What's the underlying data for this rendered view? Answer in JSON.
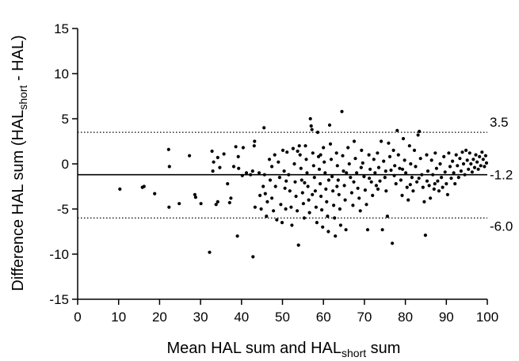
{
  "chart_data": {
    "type": "scatter",
    "title": "",
    "xlabel": {
      "pre": "Mean HAL sum and HAL",
      "sub": "short",
      "post": " sum"
    },
    "ylabel": {
      "pre": "Difference HAL sum (HAL",
      "sub": "short",
      "post": " - HAL)"
    },
    "xlim": [
      0,
      100
    ],
    "ylim": [
      -15,
      15
    ],
    "xticks": [
      0,
      10,
      20,
      30,
      40,
      50,
      60,
      70,
      80,
      90,
      100
    ],
    "yticks": [
      -15,
      -10,
      -5,
      0,
      5,
      10,
      15
    ],
    "grid": false,
    "reference_lines": [
      {
        "value": 3.5,
        "label": "3.5",
        "style": "dotted"
      },
      {
        "value": -1.2,
        "label": "-1.2",
        "style": "solid"
      },
      {
        "value": -6.0,
        "label": "-6.0",
        "style": "dotted"
      }
    ],
    "points": [
      [
        10.3,
        -2.8
      ],
      [
        15.8,
        -2.6
      ],
      [
        16.2,
        -2.5
      ],
      [
        18.8,
        -3.3
      ],
      [
        22.2,
        1.6
      ],
      [
        22.4,
        -0.3
      ],
      [
        22.3,
        -4.8
      ],
      [
        24.8,
        -4.4
      ],
      [
        27.3,
        0.9
      ],
      [
        28.6,
        -3.4
      ],
      [
        28.8,
        -3.7
      ],
      [
        30.1,
        -4.4
      ],
      [
        32.2,
        -9.8
      ],
      [
        32.8,
        1.4
      ],
      [
        33.2,
        0.2
      ],
      [
        33.0,
        -0.8
      ],
      [
        34.2,
        0.7
      ],
      [
        34.7,
        -0.4
      ],
      [
        33.8,
        -4.5
      ],
      [
        34.2,
        -4.2
      ],
      [
        35.7,
        1.1
      ],
      [
        36.6,
        -2.2
      ],
      [
        37.1,
        -4.3
      ],
      [
        37.4,
        -3.8
      ],
      [
        38.1,
        -0.3
      ],
      [
        38.6,
        1.9
      ],
      [
        39.2,
        0.8
      ],
      [
        39.3,
        -0.5
      ],
      [
        39.0,
        -8.0
      ],
      [
        40.2,
        -1.3
      ],
      [
        40.4,
        1.8
      ],
      [
        41.2,
        -1.0
      ],
      [
        42.2,
        -1.2
      ],
      [
        42.7,
        -0.8
      ],
      [
        42.8,
        -10.3
      ],
      [
        43.1,
        2.0
      ],
      [
        43.2,
        2.5
      ],
      [
        43.3,
        -4.8
      ],
      [
        44.3,
        -1.0
      ],
      [
        44.5,
        -3.5
      ],
      [
        44.8,
        -5.0
      ],
      [
        45.3,
        -2.5
      ],
      [
        45.5,
        4.0
      ],
      [
        45.6,
        -1.2
      ],
      [
        45.8,
        -3.3
      ],
      [
        46.1,
        -5.8
      ],
      [
        46.3,
        -4.2
      ],
      [
        46.8,
        0.5
      ],
      [
        47.0,
        -1.8
      ],
      [
        47.4,
        -3.8
      ],
      [
        47.8,
        -5.2
      ],
      [
        48.1,
        1.0
      ],
      [
        48.3,
        -2.5
      ],
      [
        48.6,
        -6.2
      ],
      [
        49.0,
        0.2
      ],
      [
        49.3,
        -1.5
      ],
      [
        49.6,
        -4.5
      ],
      [
        49.9,
        -6.5
      ],
      [
        50.1,
        1.5
      ],
      [
        50.4,
        -0.8
      ],
      [
        50.6,
        -2.7
      ],
      [
        50.8,
        -5.0
      ],
      [
        51.1,
        1.3
      ],
      [
        51.5,
        -1.2
      ],
      [
        51.8,
        -3.0
      ],
      [
        52.1,
        -4.8
      ],
      [
        52.3,
        -6.8
      ],
      [
        52.6,
        1.7
      ],
      [
        52.9,
        0.0
      ],
      [
        53.1,
        -2.0
      ],
      [
        53.3,
        -3.6
      ],
      [
        53.6,
        -5.2
      ],
      [
        53.9,
        -9.0
      ],
      [
        54.1,
        2.0
      ],
      [
        54.3,
        1.0
      ],
      [
        54.5,
        -0.5
      ],
      [
        54.7,
        -1.8
      ],
      [
        54.9,
        -3.2
      ],
      [
        55.1,
        -4.4
      ],
      [
        55.3,
        -6.0
      ],
      [
        55.6,
        2.0
      ],
      [
        55.8,
        0.5
      ],
      [
        56.0,
        -1.0
      ],
      [
        56.2,
        -2.5
      ],
      [
        56.4,
        -4.0
      ],
      [
        56.6,
        -5.4
      ],
      [
        56.8,
        5.0
      ],
      [
        57.0,
        4.2
      ],
      [
        57.2,
        3.8
      ],
      [
        57.4,
        1.2
      ],
      [
        57.6,
        -0.2
      ],
      [
        57.8,
        -1.5
      ],
      [
        58.0,
        -3.0
      ],
      [
        58.2,
        -4.8
      ],
      [
        58.4,
        -6.5
      ],
      [
        58.6,
        3.5
      ],
      [
        58.8,
        0.8
      ],
      [
        59.0,
        -0.6
      ],
      [
        59.2,
        -2.2
      ],
      [
        59.4,
        -3.6
      ],
      [
        59.6,
        -5.1
      ],
      [
        59.8,
        -7.0
      ],
      [
        60.0,
        1.8
      ],
      [
        60.2,
        0.2
      ],
      [
        60.4,
        -1.0
      ],
      [
        60.6,
        -2.8
      ],
      [
        60.8,
        -4.2
      ],
      [
        61.0,
        -5.8
      ],
      [
        61.2,
        -7.5
      ],
      [
        61.5,
        4.3
      ],
      [
        61.7,
        2.2
      ],
      [
        61.9,
        0.5
      ],
      [
        62.1,
        -1.4
      ],
      [
        62.3,
        -3.0
      ],
      [
        62.5,
        -4.6
      ],
      [
        62.7,
        -6.0
      ],
      [
        62.9,
        -8.0
      ],
      [
        63.2,
        1.2
      ],
      [
        63.4,
        -0.2
      ],
      [
        63.6,
        -1.8
      ],
      [
        63.8,
        -3.4
      ],
      [
        64.0,
        -5.0
      ],
      [
        64.2,
        -6.8
      ],
      [
        64.5,
        5.8
      ],
      [
        64.7,
        0.9
      ],
      [
        64.9,
        -0.8
      ],
      [
        65.1,
        -2.4
      ],
      [
        65.3,
        -4.0
      ],
      [
        65.5,
        -7.3
      ],
      [
        66.0,
        1.8
      ],
      [
        66.3,
        0.0
      ],
      [
        66.6,
        -1.5
      ],
      [
        66.9,
        -3.2
      ],
      [
        67.2,
        -4.6
      ],
      [
        67.5,
        2.5
      ],
      [
        67.8,
        0.6
      ],
      [
        68.1,
        -1.0
      ],
      [
        68.4,
        -2.7
      ],
      [
        68.7,
        -3.8
      ],
      [
        69.0,
        -5.2
      ],
      [
        69.3,
        1.5
      ],
      [
        69.6,
        0.1
      ],
      [
        69.9,
        -1.4
      ],
      [
        70.2,
        -2.9
      ],
      [
        70.5,
        -4.5
      ],
      [
        70.8,
        -7.3
      ],
      [
        71.1,
        1.0
      ],
      [
        71.4,
        -0.6
      ],
      [
        71.7,
        -2.0
      ],
      [
        72.0,
        -3.5
      ],
      [
        72.3,
        0.5
      ],
      [
        72.6,
        -1.0
      ],
      [
        72.9,
        -2.4
      ],
      [
        73.2,
        1.2
      ],
      [
        73.5,
        -0.4
      ],
      [
        73.8,
        -1.9
      ],
      [
        74.1,
        2.5
      ],
      [
        74.4,
        -7.3
      ],
      [
        74.7,
        0.3
      ],
      [
        75.0,
        -1.5
      ],
      [
        75.3,
        -3.0
      ],
      [
        75.6,
        -5.8
      ],
      [
        75.9,
        2.3
      ],
      [
        76.2,
        0.8
      ],
      [
        76.5,
        -0.7
      ],
      [
        76.8,
        -8.8
      ],
      [
        77.1,
        1.5
      ],
      [
        77.4,
        -0.2
      ],
      [
        77.7,
        -2.2
      ],
      [
        78.0,
        3.7
      ],
      [
        78.3,
        1.0
      ],
      [
        78.6,
        -0.5
      ],
      [
        78.9,
        -1.8
      ],
      [
        79.2,
        -3.5
      ],
      [
        79.5,
        2.8
      ],
      [
        79.8,
        0.4
      ],
      [
        80.1,
        -1.0
      ],
      [
        80.4,
        -2.6
      ],
      [
        80.7,
        -4.0
      ],
      [
        81.0,
        2.0
      ],
      [
        81.3,
        0.0
      ],
      [
        81.6,
        -1.5
      ],
      [
        81.9,
        -3.0
      ],
      [
        82.2,
        1.5
      ],
      [
        82.5,
        -0.3
      ],
      [
        82.8,
        -2.0
      ],
      [
        83.1,
        3.2
      ],
      [
        83.4,
        3.6
      ],
      [
        83.7,
        0.6
      ],
      [
        84.0,
        -1.2
      ],
      [
        84.3,
        -2.6
      ],
      [
        84.6,
        -4.2
      ],
      [
        84.9,
        -7.9
      ],
      [
        85.2,
        1.0
      ],
      [
        85.5,
        -0.8
      ],
      [
        85.8,
        -2.4
      ],
      [
        86.1,
        -3.8
      ],
      [
        86.4,
        0.4
      ],
      [
        86.7,
        -1.2
      ],
      [
        87.0,
        -2.8
      ],
      [
        87.3,
        1.2
      ],
      [
        87.6,
        -0.5
      ],
      [
        87.9,
        -1.9
      ],
      [
        88.2,
        -3.0
      ],
      [
        88.5,
        0.0
      ],
      [
        88.8,
        -1.5
      ],
      [
        89.1,
        -2.6
      ],
      [
        89.4,
        0.8
      ],
      [
        89.7,
        -0.9
      ],
      [
        90.0,
        -2.2
      ],
      [
        90.3,
        -3.4
      ],
      [
        90.6,
        1.2
      ],
      [
        90.9,
        -0.3
      ],
      [
        91.2,
        -1.6
      ],
      [
        91.5,
        0.3
      ],
      [
        91.8,
        -1.0
      ],
      [
        92.1,
        -2.2
      ],
      [
        92.4,
        1.0
      ],
      [
        92.7,
        -0.2
      ],
      [
        93.0,
        -1.5
      ],
      [
        93.3,
        0.6
      ],
      [
        93.6,
        -0.8
      ],
      [
        93.9,
        1.3
      ],
      [
        94.2,
        0.0
      ],
      [
        94.5,
        -1.2
      ],
      [
        94.8,
        1.5
      ],
      [
        95.1,
        0.4
      ],
      [
        95.4,
        -0.6
      ],
      [
        95.7,
        1.2
      ],
      [
        96.0,
        0.0
      ],
      [
        96.3,
        -0.9
      ],
      [
        96.6,
        0.5
      ],
      [
        96.9,
        -0.4
      ],
      [
        97.2,
        1.0
      ],
      [
        97.5,
        0.2
      ],
      [
        97.8,
        -0.6
      ],
      [
        98.1,
        0.8
      ],
      [
        98.4,
        -0.2
      ],
      [
        98.7,
        1.3
      ],
      [
        99.0,
        0.5
      ],
      [
        99.3,
        -0.3
      ],
      [
        99.6,
        0.9
      ],
      [
        99.8,
        0.1
      ],
      [
        47.4,
        -0.3
      ],
      [
        50.9,
        -1.9
      ],
      [
        53.7,
        1.4
      ],
      [
        55.4,
        -2.1
      ],
      [
        57.3,
        -3.4
      ],
      [
        59.3,
        1.0
      ],
      [
        61.3,
        -1.8
      ],
      [
        63.3,
        -2.5
      ],
      [
        65.6,
        -1.0
      ],
      [
        67.4,
        -2.0
      ],
      [
        69.2,
        -0.4
      ],
      [
        71.2,
        -1.6
      ],
      [
        73.3,
        -2.8
      ],
      [
        75.2,
        -0.8
      ],
      [
        77.3,
        -1.3
      ],
      [
        79.3,
        -0.6
      ],
      [
        81.2,
        -2.3
      ],
      [
        83.3,
        -1.6
      ],
      [
        85.3,
        -1.9
      ],
      [
        87.2,
        -2.2
      ]
    ]
  }
}
